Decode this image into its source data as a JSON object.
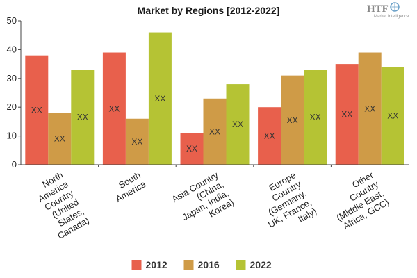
{
  "chart_data": {
    "type": "bar",
    "title": "Market by Regions [2012-2022]",
    "categories": [
      [
        "North",
        "America",
        "Country",
        "(United",
        "States,",
        "Canada)"
      ],
      [
        "South",
        "America"
      ],
      [
        "Asia Country",
        "(China,",
        "Japan, India,",
        "Korea)"
      ],
      [
        "Europe",
        "Country",
        "(Germany,",
        "UK, France,",
        "Italy)"
      ],
      [
        "Other",
        "Country",
        "(Middle East,",
        "Africa, GCC)"
      ]
    ],
    "series": [
      {
        "name": "2012",
        "color": "#e8604c",
        "values": [
          38,
          39,
          11,
          20,
          35
        ]
      },
      {
        "name": "2016",
        "color": "#cf9b47",
        "values": [
          18,
          16,
          23,
          31,
          39
        ]
      },
      {
        "name": "2022",
        "color": "#b5c334",
        "values": [
          33,
          46,
          28,
          33,
          34
        ]
      }
    ],
    "data_label": "XX",
    "ylim": [
      0,
      50
    ],
    "yticks": [
      0,
      10,
      20,
      30,
      40,
      50
    ],
    "legend_position": "bottom",
    "grid": false
  },
  "logo": {
    "main": "HTF",
    "sub": "Market Intelligence"
  }
}
